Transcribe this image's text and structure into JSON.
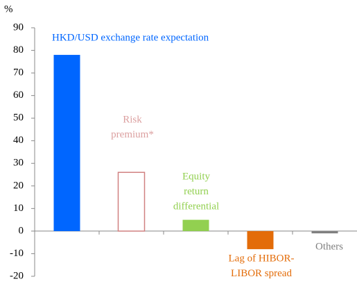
{
  "chart_data": {
    "type": "bar",
    "y_unit": "%",
    "categories": [
      [
        "HKD/USD exchange rate expectation"
      ],
      [
        "Risk",
        "premium*"
      ],
      [
        "Equity",
        "return",
        "differential"
      ],
      [
        "Lag of HIBOR-",
        "LIBOR spread"
      ],
      [
        "Others"
      ]
    ],
    "values": [
      78,
      26,
      5,
      -8,
      -1
    ],
    "colors": [
      "#0066ff",
      "#d08080",
      "#92d050",
      "#e36c09",
      "#808080"
    ],
    "styles": [
      "solid",
      "outline",
      "solid",
      "solid",
      "solid"
    ],
    "ylim": [
      -20,
      90
    ],
    "yticks": [
      -20,
      -10,
      0,
      10,
      20,
      30,
      40,
      50,
      60,
      70,
      80,
      90
    ],
    "grid": false
  }
}
